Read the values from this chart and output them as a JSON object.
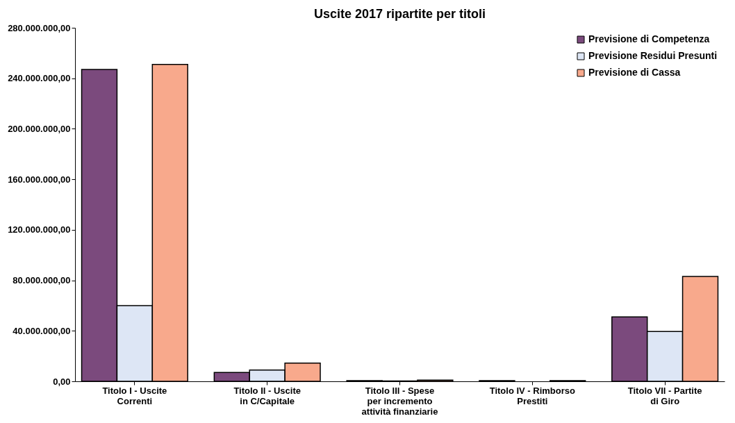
{
  "chart_data": {
    "type": "bar",
    "title": "Uscite 2017 ripartite per titoli",
    "categories": [
      "Titolo I - Uscite Correnti",
      "Titolo II - Uscite in C/Capitale",
      "Titolo III - Spese per incremento attività finanziarie",
      "Titolo IV - Rimborso Prestiti",
      "Titolo VII - Partite di Giro"
    ],
    "series": [
      {
        "name": "Previsione di Competenza",
        "color": "#7b4a7d",
        "values": [
          247000000,
          7000000,
          500000,
          500000,
          51000000
        ]
      },
      {
        "name": "Previsione Residui Presunti",
        "color": "#dde6f5",
        "values": [
          60000000,
          9000000,
          300000,
          null,
          39500000
        ]
      },
      {
        "name": "Previsione di Cassa",
        "color": "#f8a98c",
        "values": [
          251000000,
          14500000,
          1000000,
          500000,
          83000000
        ]
      }
    ],
    "ylim": [
      0,
      280000000
    ],
    "yticks": [
      {
        "value": 0,
        "label": "0,00"
      },
      {
        "value": 40000000,
        "label": "40.000.000,00"
      },
      {
        "value": 80000000,
        "label": "80.000.000,00"
      },
      {
        "value": 120000000,
        "label": "120.000.000,00"
      },
      {
        "value": 160000000,
        "label": "160.000.000,00"
      },
      {
        "value": 200000000,
        "label": "200.000.000,00"
      },
      {
        "value": 240000000,
        "label": "240.000.000,00"
      },
      {
        "value": 280000000,
        "label": "280.000.000,00"
      }
    ],
    "grid": false,
    "legend": "top right"
  }
}
